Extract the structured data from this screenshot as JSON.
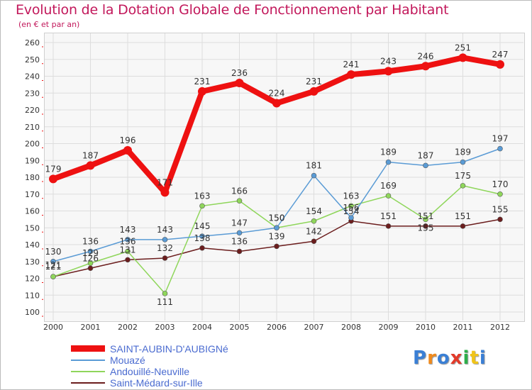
{
  "title": "Evolution de la Dotation Globale de Fonctionnement par Habitant",
  "subtitle": "(en € et par an)",
  "chart_data": {
    "type": "line",
    "title": "Evolution de la Dotation Globale de Fonctionnement par Habitant",
    "ylabel": "(en € et par an)",
    "xlabel": "",
    "x": [
      "2000",
      "2001",
      "2002",
      "2003",
      "2004",
      "2005",
      "2006",
      "2007",
      "2008",
      "2009",
      "2010",
      "2011",
      "2012"
    ],
    "ylim": [
      100,
      260
    ],
    "yticks": [
      100,
      110,
      120,
      130,
      140,
      150,
      160,
      170,
      180,
      190,
      200,
      210,
      220,
      230,
      240,
      250,
      260
    ],
    "grid": true,
    "legend_position": "bottom-left",
    "series": [
      {
        "name": "SAINT-AUBIN-D'AUBIGNé",
        "color": "#ee1111",
        "values": [
          179,
          187,
          196,
          171,
          231,
          236,
          224,
          231,
          241,
          243,
          246,
          251,
          247
        ]
      },
      {
        "name": "Mouazé",
        "color": "#5a9bd5",
        "values": [
          130,
          136,
          143,
          143,
          145,
          147,
          150,
          181,
          156,
          189,
          187,
          189,
          197
        ]
      },
      {
        "name": "Andouillé-Neuville",
        "color": "#8fd65b",
        "values": [
          121,
          129,
          136,
          111,
          163,
          166,
          150,
          154,
          163,
          169,
          155,
          175,
          170
        ]
      },
      {
        "name": "Saint-Médard-sur-Ille",
        "color": "#6b1d1d",
        "values": [
          121,
          126,
          131,
          132,
          138,
          136,
          139,
          142,
          154,
          151,
          151,
          151,
          155
        ]
      }
    ],
    "data_labels": [
      [
        "179",
        "187",
        "196",
        "171",
        "231",
        "236",
        "224",
        "231",
        "241",
        "243",
        "246",
        "251",
        "247"
      ],
      [
        "130",
        "136",
        "143",
        "143",
        "145",
        "147",
        "150",
        "181",
        "156",
        "189",
        "187",
        "189",
        "197"
      ],
      [
        "121",
        "129",
        "136",
        "111",
        "163",
        "166",
        "150",
        "154",
        "163",
        "169",
        "155",
        "175",
        "170"
      ],
      [
        "121",
        "126",
        "131",
        "132",
        "138",
        "136",
        "139",
        "142",
        "154",
        "151",
        "151",
        "151",
        "155"
      ]
    ]
  },
  "legend": {
    "items": [
      {
        "label": "SAINT-AUBIN-D'AUBIGNé",
        "color": "#ee1111"
      },
      {
        "label": "Mouazé",
        "color": "#5a9bd5"
      },
      {
        "label": "Andouillé-Neuville",
        "color": "#8fd65b"
      },
      {
        "label": "Saint-Médard-sur-Ille",
        "color": "#6b1d1d"
      }
    ]
  },
  "logo": {
    "letters": [
      "P",
      "r",
      "o",
      "x",
      "i",
      "t",
      "i"
    ],
    "colors": [
      "#3a7fd5",
      "#f08a1c",
      "#3a7fd5",
      "#e23a2a",
      "#2eae4a",
      "#f0c419",
      "#3a7fd5"
    ]
  }
}
